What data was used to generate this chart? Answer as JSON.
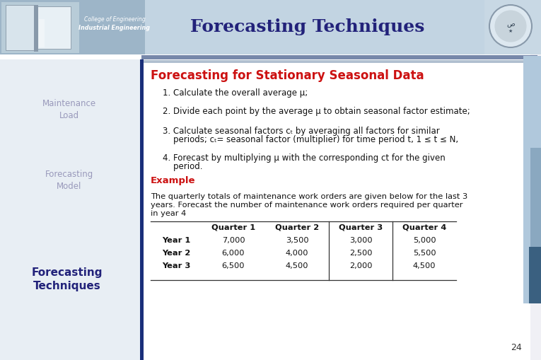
{
  "title": "Forecasting Techniques",
  "section_title": "Forecasting for Stationary Seasonal Data",
  "left_label1": "Maintenance\nLoad",
  "left_label2": "Forecasting\nModel",
  "bottom_left_label": "Forecasting\nTechniques",
  "header_text1": "College of Engineering",
  "header_text2": "Industrial Engineering",
  "step1": "1. Calculate the overall average μ;",
  "step2": "2. Divide each point by the average μ to obtain seasonal factor estimate;",
  "step3a": "3. Calculate seasonal factors cₜ by averaging all factors for similar",
  "step3b": "    periods; cₜ= seasonal factor (multiplier) for time period t, 1 ≤ t ≤ N,",
  "step4a": "4. Forecast by multiplying μ with the corresponding ct for the given",
  "step4b": "    period.",
  "example_label": "Example",
  "example_line1": "The quarterly totals of maintenance work orders are given below for the last 3",
  "example_line2": "years. Forecast the number of maintenance work orders required per quarter",
  "example_line3": "in year 4",
  "table_headers": [
    "",
    "Quarter 1",
    "Quarter 2",
    "Quarter 3",
    "Quarter 4"
  ],
  "table_rows": [
    [
      "Year 1",
      "7,000",
      "3,500",
      "3,000",
      "5,000"
    ],
    [
      "Year 2",
      "6,000",
      "4,000",
      "2,500",
      "5,500"
    ],
    [
      "Year 3",
      "6,500",
      "4,500",
      "2,000",
      "4,500"
    ]
  ],
  "page_number": "24",
  "bg_color": "#f0f0f5",
  "header_bg_left": "#b8ccd8",
  "header_bg_right": "#c8d8e8",
  "header_stripe1_color": "#8899bb",
  "header_stripe2_color": "#c0ccd8",
  "title_color": "#22227a",
  "section_title_color": "#cc1111",
  "example_color": "#cc1111",
  "left_label_color": "#9999bb",
  "bottom_label_color": "#22227a",
  "body_text_color": "#111111",
  "vertical_bar_color": "#1a2f7a",
  "right_strip_color": "#a0b8cc",
  "right_strip2_color": "#7090b0"
}
